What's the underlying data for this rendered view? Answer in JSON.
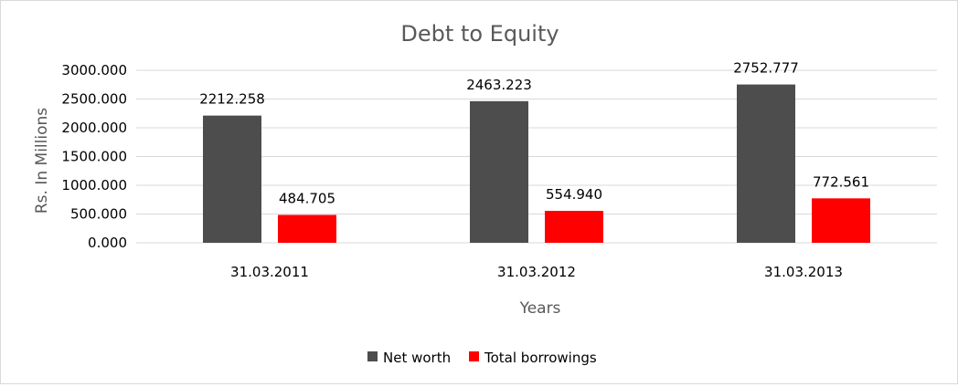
{
  "chart_data": {
    "type": "bar",
    "title": "Debt to Equity",
    "xlabel": "Years",
    "ylabel": "Rs. In Millions",
    "categories": [
      "31.03.2011",
      "31.03.2012",
      "31.03.2013"
    ],
    "series": [
      {
        "name": "Net worth",
        "values": [
          2212.258,
          2463.223,
          2752.777
        ],
        "labels": [
          "2212.258",
          "2463.223",
          "2752.777"
        ],
        "color": "#4d4d4d"
      },
      {
        "name": "Total borrowings",
        "values": [
          484.705,
          554.94,
          772.561
        ],
        "labels": [
          "484.705",
          "554.940",
          "772.561"
        ],
        "color": "#ff0000"
      }
    ],
    "ylim": [
      0,
      3000
    ],
    "yticks": [
      0,
      500,
      1000,
      1500,
      2000,
      2500,
      3000
    ],
    "ytick_labels": [
      "0.000",
      "500.000",
      "1000.000",
      "1500.000",
      "2000.000",
      "2500.000",
      "3000.000"
    ],
    "grid": true,
    "legend_position": "bottom"
  }
}
